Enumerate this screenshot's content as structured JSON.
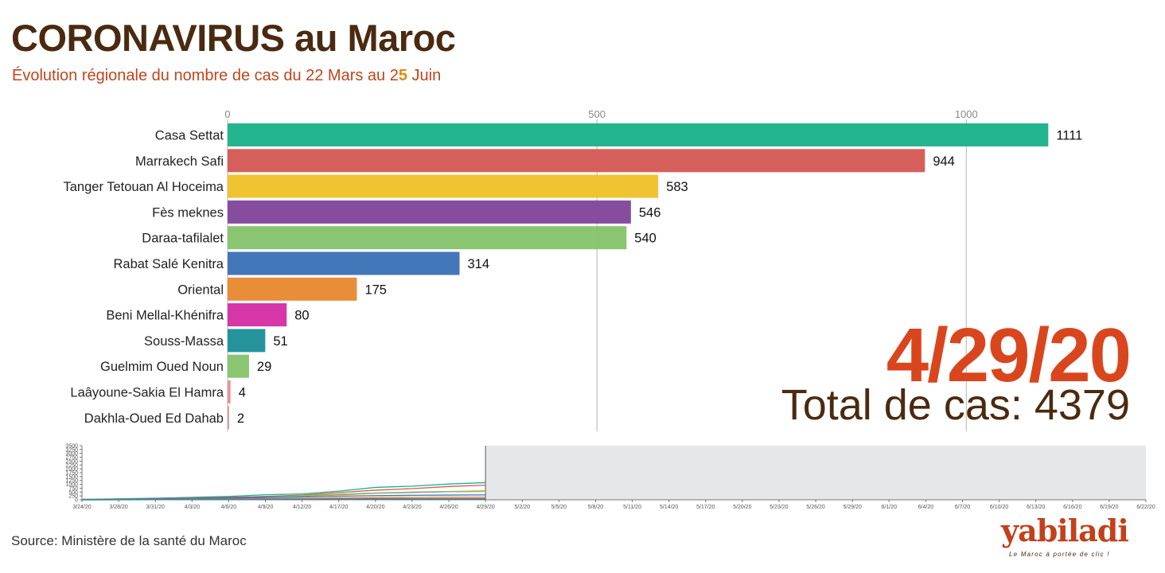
{
  "header": {
    "title": "CORONAVIRUS au Maroc",
    "subtitle_before": "Évolution régionale du nombre de cas du 22 Mars au 2",
    "subtitle_highlight": "5",
    "subtitle_after": " Juin"
  },
  "overlay": {
    "date": "4/29/20",
    "total": "Total de cas: 4379"
  },
  "chart_data": [
    {
      "type": "bar",
      "orientation": "horizontal",
      "axis_ticks": [
        0,
        500,
        1000
      ],
      "xlim": [
        0,
        1130
      ],
      "grid": true,
      "categories": [
        "Casa Settat",
        "Marrakech Safi",
        "Tanger Tetouan Al Hoceima",
        "Fès meknes",
        "Daraa-tafilalet",
        "Rabat Salé Kenitra",
        "Oriental",
        "Beni Mellal-Khénifra",
        "Souss-Massa",
        "Guelmim Oued Noun",
        "Laâyoune-Sakia El Hamra",
        "Dakhla-Oued Ed Dahab"
      ],
      "values": [
        1111,
        944,
        583,
        546,
        540,
        314,
        175,
        80,
        51,
        29,
        4,
        2
      ],
      "colors": [
        "#1cb38b",
        "#d55a57",
        "#f0c12a",
        "#82479c",
        "#86c36c",
        "#3e72b8",
        "#e88a32",
        "#d52fa5",
        "#1d9099",
        "#86c36c",
        "#e88f8f",
        "#e88f8f"
      ]
    },
    {
      "type": "line",
      "ylim": [
        0,
        3500
      ],
      "yticks": [
        0,
        250,
        500,
        750,
        1000,
        1250,
        1500,
        1750,
        2000,
        2250,
        2500,
        2750,
        3000,
        3250,
        3500
      ],
      "x_ticks": [
        "3/24/20",
        "3/28/20",
        "3/31/20",
        "4/3/20",
        "4/6/20",
        "4/9/20",
        "4/12/20",
        "4/17/20",
        "4/20/20",
        "4/23/20",
        "4/26/20",
        "4/29/20",
        "5/2/20",
        "5/5/20",
        "5/8/20",
        "5/11/20",
        "5/14/20",
        "5/17/20",
        "5/20/20",
        "5/23/20",
        "5/26/20",
        "5/29/20",
        "6/1/20",
        "6/4/20",
        "6/7/20",
        "6/10/20",
        "6/13/20",
        "6/16/20",
        "6/19/20",
        "6/22/20"
      ],
      "current_index": 11,
      "series": [
        {
          "color": "#1cb38b",
          "values": [
            30,
            60,
            100,
            160,
            220,
            330,
            380,
            560,
            800,
            880,
            1020,
            1111
          ]
        },
        {
          "color": "#d55a57",
          "values": [
            20,
            40,
            70,
            110,
            160,
            220,
            300,
            470,
            620,
            720,
            860,
            944
          ]
        },
        {
          "color": "#f0c12a",
          "values": [
            10,
            20,
            40,
            70,
            110,
            160,
            220,
            310,
            420,
            480,
            540,
            583
          ]
        },
        {
          "color": "#82479c",
          "values": [
            10,
            25,
            45,
            80,
            130,
            190,
            260,
            350,
            430,
            480,
            520,
            546
          ]
        },
        {
          "color": "#86c36c",
          "values": [
            0,
            5,
            20,
            50,
            90,
            160,
            260,
            360,
            440,
            500,
            530,
            540
          ]
        },
        {
          "color": "#3e72b8",
          "values": [
            10,
            25,
            45,
            70,
            100,
            140,
            180,
            230,
            270,
            290,
            305,
            314
          ]
        },
        {
          "color": "#e88a32",
          "values": [
            5,
            10,
            20,
            35,
            50,
            70,
            90,
            120,
            145,
            160,
            170,
            175
          ]
        },
        {
          "color": "#d52fa5",
          "values": [
            2,
            5,
            10,
            18,
            25,
            35,
            45,
            58,
            68,
            74,
            78,
            80
          ]
        },
        {
          "color": "#1d9099",
          "values": [
            1,
            3,
            6,
            10,
            15,
            20,
            26,
            34,
            42,
            47,
            50,
            51
          ]
        }
      ]
    }
  ],
  "footer": {
    "source": "Source: Ministère de la santé du Maroc"
  },
  "logo": {
    "word": "yabiladi",
    "tagline": "Le Maroc à portée de clic !"
  }
}
